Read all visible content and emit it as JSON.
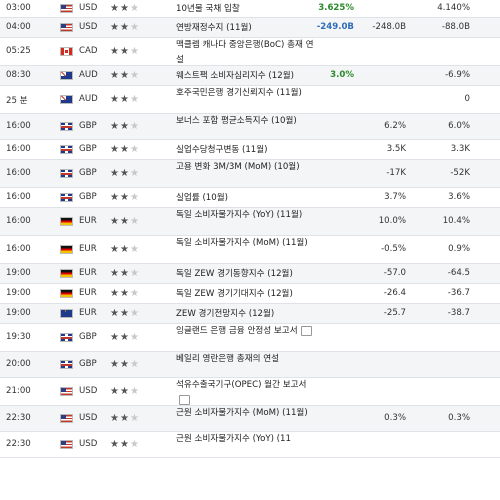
{
  "rows": [
    {
      "time": "03:00",
      "flag": "us",
      "currency": "USD",
      "importance": 2,
      "event": "10년물 국채 입찰",
      "actual": "3.625%",
      "actual_dir": "up",
      "forecast": "",
      "previous": "4.140%"
    },
    {
      "time": "04:00",
      "flag": "us",
      "currency": "USD",
      "importance": 2,
      "event": "연방재정수지 (11월)",
      "actual": "-249.0B",
      "actual_dir": "down",
      "forecast": "-248.0B",
      "previous": "-88.0B"
    },
    {
      "time": "05:25",
      "flag": "ca",
      "currency": "CAD",
      "importance": 2,
      "event": "맥클렘 캐나다 중앙은행(BoC) 총재 연설",
      "actual": "",
      "actual_dir": "",
      "forecast": "",
      "previous": ""
    },
    {
      "time": "08:30",
      "flag": "au",
      "currency": "AUD",
      "importance": 2,
      "event": "웨스트팩 소비자심리지수 (12월)",
      "actual": "3.0%",
      "actual_dir": "up",
      "forecast": "",
      "previous": "-6.9%"
    },
    {
      "time": "25 분",
      "flag": "au",
      "currency": "AUD",
      "importance": 2,
      "event": "호주국민은행 경기신뢰지수 (11월)",
      "actual": "",
      "actual_dir": "",
      "forecast": "",
      "previous": "0"
    },
    {
      "time": "16:00",
      "flag": "gb",
      "currency": "GBP",
      "importance": 2,
      "event": "보너스 포함 평균소득지수 (10월)",
      "actual": "",
      "actual_dir": "",
      "forecast": "6.2%",
      "previous": "6.0%"
    },
    {
      "time": "16:00",
      "flag": "gb",
      "currency": "GBP",
      "importance": 2,
      "event": "실업수당청구변동 (11월)",
      "actual": "",
      "actual_dir": "",
      "forecast": "3.5K",
      "previous": "3.3K"
    },
    {
      "time": "16:00",
      "flag": "gb",
      "currency": "GBP",
      "importance": 2,
      "event": "고용 변화 3M/3M (MoM) (10월)",
      "actual": "",
      "actual_dir": "",
      "forecast": "-17K",
      "previous": "-52K"
    },
    {
      "time": "16:00",
      "flag": "gb",
      "currency": "GBP",
      "importance": 2,
      "event": "실업률 (10월)",
      "actual": "",
      "actual_dir": "",
      "forecast": "3.7%",
      "previous": "3.6%"
    },
    {
      "time": "16:00",
      "flag": "de",
      "currency": "EUR",
      "importance": 2,
      "event": "독일 소비자물가지수 (YoY) (11월)",
      "actual": "",
      "actual_dir": "",
      "forecast": "10.0%",
      "previous": "10.4%"
    },
    {
      "time": "16:00",
      "flag": "de",
      "currency": "EUR",
      "importance": 2,
      "event": "독일 소비자물가지수 (MoM) (11월)",
      "actual": "",
      "actual_dir": "",
      "forecast": "-0.5%",
      "previous": "0.9%"
    },
    {
      "time": "19:00",
      "flag": "de",
      "currency": "EUR",
      "importance": 2,
      "event": "독일 ZEW 경기동향지수 (12월)",
      "actual": "",
      "actual_dir": "",
      "forecast": "-57.0",
      "previous": "-64.5"
    },
    {
      "time": "19:00",
      "flag": "de",
      "currency": "EUR",
      "importance": 2,
      "event": "독일 ZEW 경기기대지수 (12월)",
      "actual": "",
      "actual_dir": "",
      "forecast": "-26.4",
      "previous": "-36.7"
    },
    {
      "time": "19:00",
      "flag": "eu",
      "currency": "EUR",
      "importance": 2,
      "event": "ZEW 경기전망지수 (12월)",
      "actual": "",
      "actual_dir": "",
      "forecast": "-25.7",
      "previous": "-38.7"
    },
    {
      "time": "19:30",
      "flag": "gb",
      "currency": "GBP",
      "importance": 2,
      "event": "잉글랜드 은행 금융 안정성 보고서",
      "note": true,
      "actual": "",
      "actual_dir": "",
      "forecast": "",
      "previous": ""
    },
    {
      "time": "20:00",
      "flag": "gb",
      "currency": "GBP",
      "importance": 2,
      "event": "베일리 영란은행 총재의 연설",
      "actual": "",
      "actual_dir": "",
      "forecast": "",
      "previous": ""
    },
    {
      "time": "21:00",
      "flag": "us",
      "currency": "USD",
      "importance": 2,
      "event": "석유수출국기구(OPEC) 월간 보고서",
      "note": true,
      "actual": "",
      "actual_dir": "",
      "forecast": "",
      "previous": ""
    },
    {
      "time": "22:30",
      "flag": "us",
      "currency": "USD",
      "importance": 2,
      "event": "근원 소비자물가지수 (MoM) (11월)",
      "actual": "",
      "actual_dir": "",
      "forecast": "0.3%",
      "previous": "0.3%"
    },
    {
      "time": "22:30",
      "flag": "us",
      "currency": "USD",
      "importance": 2,
      "event": "근원 소비자물가지수 (YoY) (11",
      "actual": "",
      "actual_dir": "",
      "forecast": "",
      "previous": ""
    }
  ]
}
